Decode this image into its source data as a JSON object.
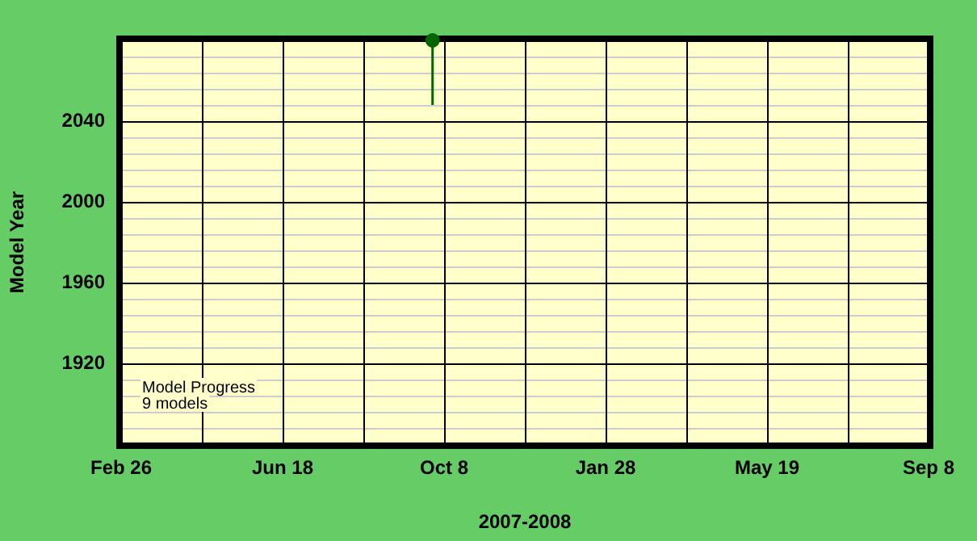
{
  "chart_data": {
    "type": "scatter",
    "xlabel": "2007-2008",
    "ylabel": "Model Year",
    "annotations": [
      "Model Progress\n9 models"
    ],
    "x": [
      "2007-09-30"
    ],
    "values": [
      2080
    ],
    "errors": [
      [
        2048,
        2080
      ]
    ],
    "color": "#006600",
    "marker": "circle",
    "xlim": [
      "2007-02-26",
      "2008-09-08"
    ],
    "xticks": [
      {
        "value": "2007-02-26",
        "label": "Feb 26"
      },
      {
        "value": "2007-04-23",
        "label": null
      },
      {
        "value": "2007-06-18",
        "label": "Jun 18"
      },
      {
        "value": "2007-08-13",
        "label": null
      },
      {
        "value": "2007-10-08",
        "label": "Oct 8"
      },
      {
        "value": "2007-12-03",
        "label": null
      },
      {
        "value": "2008-01-28",
        "label": "Jan 28"
      },
      {
        "value": "2008-03-24",
        "label": null
      },
      {
        "value": "2008-05-19",
        "label": "May 19"
      },
      {
        "value": "2008-07-14",
        "label": null
      },
      {
        "value": "2008-09-08",
        "label": "Sep 8"
      }
    ],
    "ylim": [
      1880,
      2080
    ],
    "yticks": [
      {
        "value": 1880,
        "label": null
      },
      {
        "value": 1888,
        "label": null
      },
      {
        "value": 1896,
        "label": null
      },
      {
        "value": 1904,
        "label": null
      },
      {
        "value": 1912,
        "label": null
      },
      1920,
      {
        "value": 1928,
        "label": null
      },
      {
        "value": 1936,
        "label": null
      },
      {
        "value": 1944,
        "label": null
      },
      {
        "value": 1952,
        "label": null
      },
      1960,
      {
        "value": 1968,
        "label": null
      },
      {
        "value": 1976,
        "label": null
      },
      {
        "value": 1984,
        "label": null
      },
      {
        "value": 1992,
        "label": null
      },
      2000,
      {
        "value": 2008,
        "label": null
      },
      {
        "value": 2016,
        "label": null
      },
      {
        "value": 2024,
        "label": null
      },
      {
        "value": 2032,
        "label": null
      },
      2040,
      {
        "value": 2048,
        "label": null
      },
      {
        "value": 2056,
        "label": null
      },
      {
        "value": 2064,
        "label": null
      },
      {
        "value": 2072,
        "label": null
      },
      {
        "value": 2080,
        "label": null
      }
    ],
    "grid": true,
    "legend": false
  }
}
